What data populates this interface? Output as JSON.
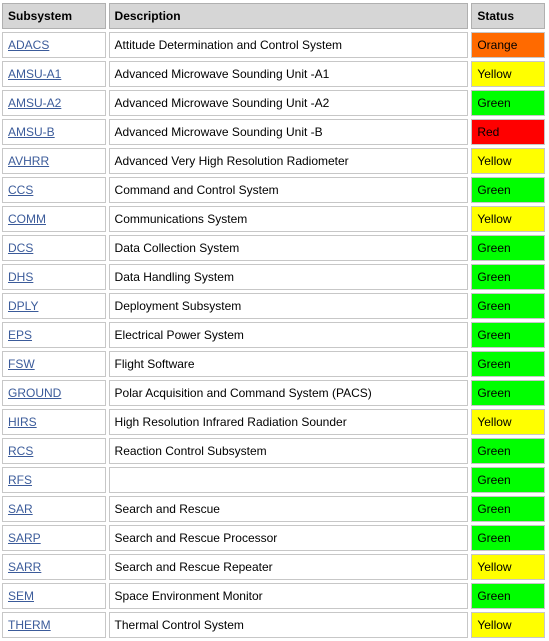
{
  "headers": {
    "subsystem": "Subsystem",
    "description": "Description",
    "status": "Status"
  },
  "status_colors": {
    "Green": "#00ff00",
    "Yellow": "#ffff00",
    "Orange": "#ff6a00",
    "Red": "#ff0000"
  },
  "rows": [
    {
      "subsystem": "ADACS",
      "description": "Attitude Determination and Control System",
      "status": "Orange"
    },
    {
      "subsystem": "AMSU-A1",
      "description": "Advanced Microwave Sounding Unit -A1",
      "status": "Yellow"
    },
    {
      "subsystem": "AMSU-A2",
      "description": "Advanced Microwave Sounding Unit -A2",
      "status": "Green"
    },
    {
      "subsystem": "AMSU-B",
      "description": "Advanced Microwave Sounding Unit -B",
      "status": "Red"
    },
    {
      "subsystem": "AVHRR",
      "description": "Advanced Very High Resolution Radiometer",
      "status": "Yellow"
    },
    {
      "subsystem": "CCS",
      "description": "Command and Control System",
      "status": "Green"
    },
    {
      "subsystem": "COMM",
      "description": "Communications System",
      "status": "Yellow"
    },
    {
      "subsystem": "DCS",
      "description": "Data Collection System",
      "status": "Green"
    },
    {
      "subsystem": "DHS",
      "description": "Data Handling System",
      "status": "Green"
    },
    {
      "subsystem": "DPLY",
      "description": "Deployment Subsystem",
      "status": "Green"
    },
    {
      "subsystem": "EPS",
      "description": "Electrical Power System",
      "status": "Green"
    },
    {
      "subsystem": "FSW",
      "description": "Flight Software",
      "status": "Green"
    },
    {
      "subsystem": "GROUND",
      "description": "Polar Acquisition and Command System (PACS)",
      "status": "Green"
    },
    {
      "subsystem": "HIRS",
      "description": "High Resolution Infrared Radiation Sounder",
      "status": "Yellow"
    },
    {
      "subsystem": "RCS",
      "description": "Reaction Control Subsystem",
      "status": "Green"
    },
    {
      "subsystem": "RFS",
      "description": "",
      "status": "Green"
    },
    {
      "subsystem": "SAR",
      "description": "Search and Rescue",
      "status": "Green"
    },
    {
      "subsystem": "SARP",
      "description": "Search and Rescue Processor",
      "status": "Green"
    },
    {
      "subsystem": "SARR",
      "description": "Search and Rescue Repeater",
      "status": "Yellow"
    },
    {
      "subsystem": "SEM",
      "description": "Space Environment Monitor",
      "status": "Green"
    },
    {
      "subsystem": "THERM",
      "description": "Thermal Control System",
      "status": "Yellow"
    }
  ]
}
